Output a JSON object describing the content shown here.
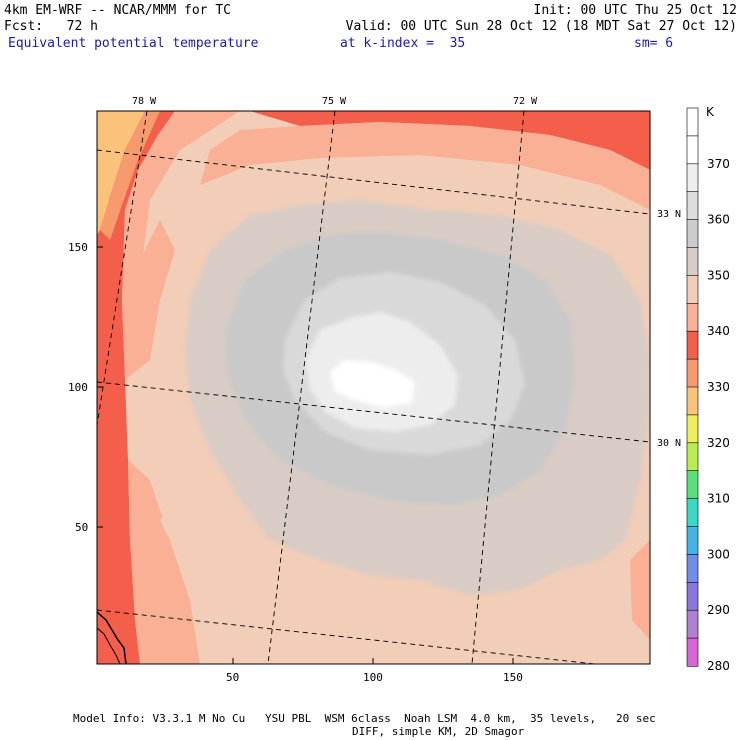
{
  "header": {
    "model_line": "4km EM-WRF -- NCAR/MMM for TC",
    "init_line": "Init: 00 UTC Thu 25 Oct 12",
    "fcst_line": "Fcst:   72 h",
    "valid_line": "Valid: 00 UTC Sun 28 Oct 12 (18 MDT Sat 27 Oct 12)",
    "field_name": "Equivalent potential temperature",
    "level": "at k-index =  35",
    "smoothing": "sm= 6"
  },
  "map": {
    "lon_labels": [
      "78 W",
      "75 W",
      "72 W"
    ],
    "lat_labels": [
      "33 N",
      "30 N"
    ],
    "x_ticks": [
      "50",
      "100",
      "150"
    ],
    "y_ticks": [
      "150",
      "100",
      "50"
    ],
    "colors": {
      "theta_330": "#f9a26e",
      "theta_340": "#f45f4b",
      "theta_345": "#f9b094",
      "theta_350": "#f2cdb7",
      "theta_355": "#d7ccc4",
      "theta_360": "#c9c9c9",
      "theta_365": "#d9d9d9",
      "theta_370": "#ededed",
      "theta_375": "#ffffff",
      "coast": "#000000"
    }
  },
  "colorbar": {
    "unit": "K",
    "labels": [
      "370",
      "360",
      "350",
      "340",
      "330",
      "320",
      "310",
      "300",
      "290",
      "280"
    ],
    "colors": [
      "#ffffff",
      "#ffffff",
      "#eeeeee",
      "#dddddd",
      "#cccccc",
      "#d8ccc4",
      "#f2cdb7",
      "#f9b094",
      "#f45f4b",
      "#f79a6e",
      "#fbc37a",
      "#f2ee5a",
      "#b8ee4e",
      "#58e07a",
      "#3bd8c6",
      "#44b4e6",
      "#6e8ee8",
      "#8a76dc",
      "#b080d2",
      "#d966d6"
    ]
  },
  "footer": {
    "line1": "Model Info: V3.3.1 M No Cu   YSU PBL  WSM 6class  Noah LSM  4.0 km,  35 levels,   20 sec",
    "line2": "DIFF, simple KM, 2D Smagor"
  }
}
